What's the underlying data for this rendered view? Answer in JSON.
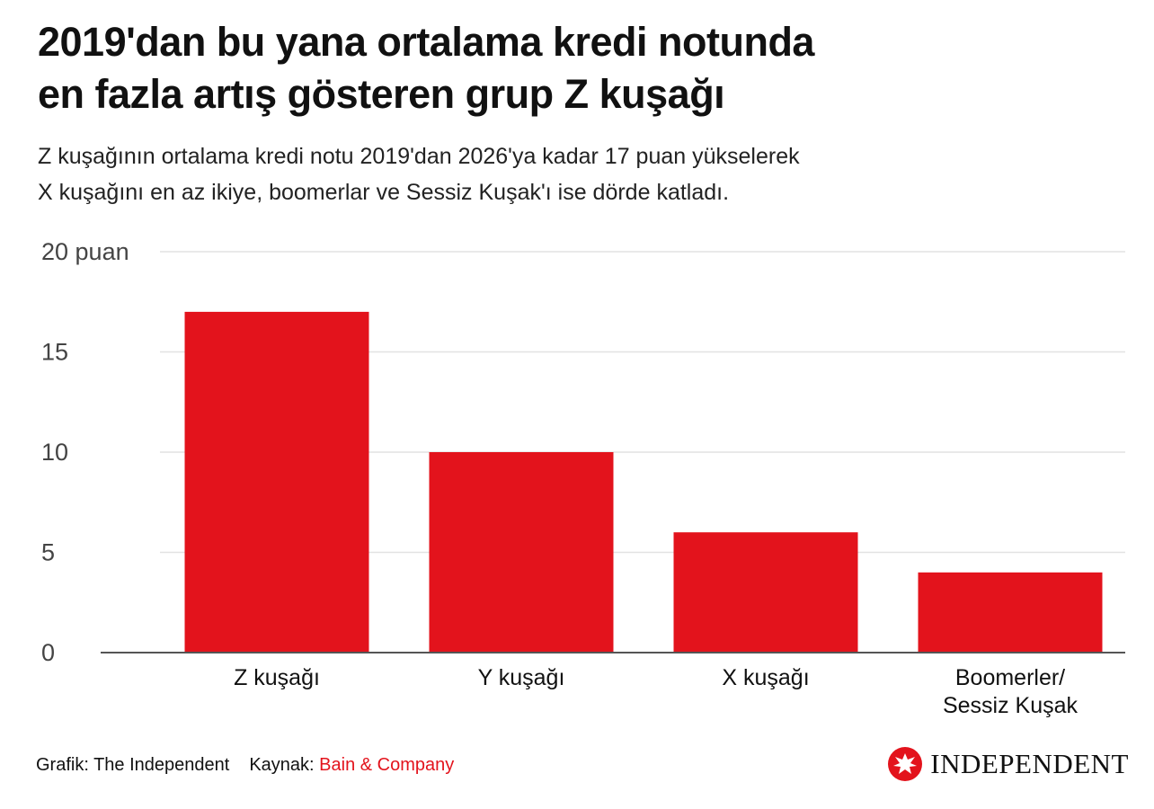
{
  "title_line1": "2019'dan bu yana ortalama kredi notunda",
  "title_line2": "en fazla artış gösteren grup Z kuşağı",
  "subtitle_line1": "Z kuşağının ortalama kredi notu 2019'dan 2026'ya kadar 17 puan yükselerek",
  "subtitle_line2": "X kuşağını en az ikiye, boomerlar ve Sessiz Kuşak'ı ise dörde katladı.",
  "colors": {
    "bar": "#e3131c",
    "grid": "#e2e2e2",
    "axis": "#555555",
    "accent": "#e3131c"
  },
  "chart_data": {
    "type": "bar",
    "categories": [
      "Z kuşağı",
      "Y kuşağı",
      "X kuşağı",
      "Boomerler/\nSessiz Kuşak"
    ],
    "values": [
      17,
      10,
      6,
      4
    ],
    "ylim": [
      0,
      20
    ],
    "yticks": [
      0,
      5,
      10,
      15,
      20
    ],
    "ytick_labels": [
      "0",
      "5",
      "10",
      "15",
      "20 puan"
    ],
    "grid": true,
    "legend": "none"
  },
  "footer": {
    "graphic_label": "Grafik: The Independent",
    "source_label": "Kaynak:",
    "source_name": "Bain & Company"
  },
  "logo": {
    "text": "INDEPENDENT",
    "icon": "eagle-icon"
  }
}
